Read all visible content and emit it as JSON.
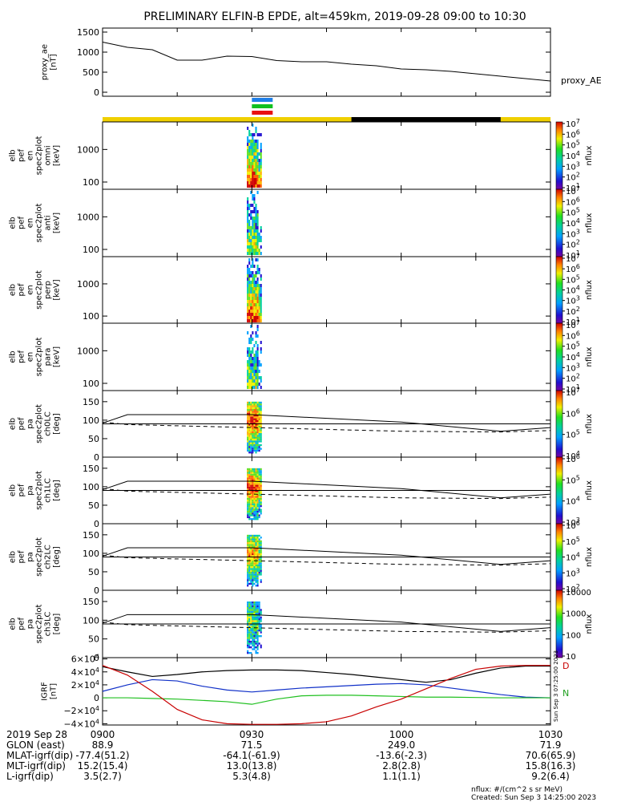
{
  "title": "PRELIMINARY ELFIN-B EPDE, alt=459km, 2019-09-28 09:00 to 10:30",
  "colors": {
    "orbit_yellow": "#f0d000",
    "orbit_black": "#000000",
    "bar_blue": "#1f7fe8",
    "bar_green": "#10c020",
    "bar_red": "#e81010",
    "grf_black": "#000000",
    "grf_blue": "#1030c8",
    "grf_green": "#20c020",
    "grf_red": "#c80000"
  },
  "panels": [
    {
      "id": "ae",
      "ylabel": [
        "proxy_ae",
        "[nT]"
      ],
      "side_label": "proxy_AE"
    },
    {
      "id": "en1",
      "ylabel": [
        "elb",
        "pef",
        "en",
        "spec2plot",
        "omni",
        "[keV]"
      ],
      "cbar_label": "nflux"
    },
    {
      "id": "en2",
      "ylabel": [
        "elb",
        "pef",
        "en",
        "spec2plot",
        "anti",
        "[keV]"
      ],
      "cbar_label": "nflux"
    },
    {
      "id": "en3",
      "ylabel": [
        "elb",
        "pef",
        "en",
        "spec2plot",
        "perp",
        "[keV]"
      ],
      "cbar_label": "nflux"
    },
    {
      "id": "en4",
      "ylabel": [
        "elb",
        "pef",
        "en",
        "spec2plot",
        "para",
        "[keV]"
      ],
      "cbar_label": "nflux"
    },
    {
      "id": "pa0",
      "ylabel": [
        "elb",
        "pef",
        "pa",
        "spec2plot",
        "ch0LC",
        "[deg]"
      ],
      "cbar_label": "nflux"
    },
    {
      "id": "pa1",
      "ylabel": [
        "elb",
        "pef",
        "pa",
        "spec2plot",
        "ch1LC",
        "[deg]"
      ],
      "cbar_label": "nflux"
    },
    {
      "id": "pa2",
      "ylabel": [
        "elb",
        "pef",
        "pa",
        "spec2plot",
        "ch2LC",
        "[deg]"
      ],
      "cbar_label": "nflux"
    },
    {
      "id": "pa3",
      "ylabel": [
        "elb",
        "pef",
        "pa",
        "spec2plot",
        "ch3LC",
        "[deg]"
      ],
      "cbar_label": "nflux"
    },
    {
      "id": "grf",
      "ylabel": [
        "IGRF",
        "[nT]"
      ]
    }
  ],
  "footer": {
    "rows": [
      {
        "label": "2019 Sep 28",
        "values": [
          "0900",
          "0930",
          "1000",
          "1030"
        ]
      },
      {
        "label": "GLON (east)",
        "values": [
          "88.9",
          "71.5",
          "249.0",
          "71.9"
        ]
      },
      {
        "label": "MLAT-igrf(dip)",
        "values": [
          "-77.4(51.2)",
          "-64.1(-61.9)",
          "-13.6(-2.3)",
          "70.6(65.9)"
        ]
      },
      {
        "label": "MLT-igrf(dip)",
        "values": [
          "15.2(15.4)",
          "13.0(13.8)",
          "2.8(2.8)",
          "15.8(16.3)"
        ]
      },
      {
        "label": "L-igrf(dip)",
        "values": [
          "3.5(2.7)",
          "5.3(4.8)",
          "1.1(1.1)",
          "9.2(6.4)"
        ]
      }
    ],
    "units": "nflux: #/(cm^2 s sr MeV)",
    "created": "Created: Sun Sep  3 14:25:00 2023"
  },
  "grf_side": {
    "d_label": "D",
    "n_label": "N",
    "stamp": "Sun Sep  3 07:25:00 2023"
  },
  "chart_data": [
    {
      "type": "line",
      "panel": "ae",
      "x": [
        "09:00",
        "09:05",
        "09:10",
        "09:15",
        "09:20",
        "09:25",
        "09:30",
        "09:35",
        "09:40",
        "09:45",
        "09:50",
        "09:55",
        "10:00",
        "10:05",
        "10:10",
        "10:15",
        "10:20",
        "10:25",
        "10:30"
      ],
      "series": [
        {
          "values": [
            1250,
            1120,
            1060,
            800,
            800,
            900,
            890,
            790,
            760,
            760,
            700,
            660,
            580,
            560,
            520,
            460,
            400,
            340,
            280
          ]
        }
      ],
      "ylim": [
        -100,
        1600
      ],
      "yticks": [
        0,
        500,
        1000,
        1500
      ],
      "ytick_labels": [
        "0",
        "500",
        "1000",
        "1500"
      ]
    },
    {
      "type": "bar",
      "panel": "orbit-bar",
      "segments": [
        {
          "start": "09:00",
          "end": "09:50",
          "color": "yellow"
        },
        {
          "start": "09:50",
          "end": "10:20",
          "color": "black"
        },
        {
          "start": "10:20",
          "end": "10:30",
          "color": "yellow"
        }
      ],
      "indicator_bars": [
        {
          "color": "blue"
        },
        {
          "color": "green"
        },
        {
          "color": "red"
        }
      ],
      "indicator_time": "09:30"
    },
    {
      "type": "heatmap",
      "panel": "en1",
      "yscale": "log",
      "ylim": [
        60,
        7000
      ],
      "yticks": [
        100,
        1000
      ],
      "ytick_labels": [
        "100",
        "1000"
      ],
      "cbar": {
        "scale": "log",
        "range": [
          10,
          10000000
        ],
        "labels": [
          "10^1",
          "10^2",
          "10^3",
          "10^4",
          "10^5",
          "10^6",
          "10^7"
        ]
      }
    },
    {
      "type": "heatmap",
      "panel": "en2",
      "yscale": "log",
      "ylim": [
        60,
        7000
      ],
      "yticks": [
        100,
        1000
      ],
      "ytick_labels": [
        "100",
        "1000"
      ],
      "cbar": {
        "scale": "log",
        "range": [
          10,
          10000000
        ],
        "labels": [
          "10^1",
          "10^2",
          "10^3",
          "10^4",
          "10^5",
          "10^6",
          "10^7"
        ]
      }
    },
    {
      "type": "heatmap",
      "panel": "en3",
      "yscale": "log",
      "ylim": [
        60,
        7000
      ],
      "yticks": [
        100,
        1000
      ],
      "ytick_labels": [
        "100",
        "1000"
      ],
      "cbar": {
        "scale": "log",
        "range": [
          10,
          10000000
        ],
        "labels": [
          "10^1",
          "10^2",
          "10^3",
          "10^4",
          "10^5",
          "10^6",
          "10^7"
        ]
      }
    },
    {
      "type": "heatmap",
      "panel": "en4",
      "yscale": "log",
      "ylim": [
        60,
        7000
      ],
      "yticks": [
        100,
        1000
      ],
      "ytick_labels": [
        "100",
        "1000"
      ],
      "cbar": {
        "scale": "log",
        "range": [
          10,
          10000000
        ],
        "labels": [
          "10^1",
          "10^2",
          "10^3",
          "10^4",
          "10^5",
          "10^6",
          "10^7"
        ]
      }
    },
    {
      "type": "heatmap",
      "panel": "pa0",
      "ylim": [
        0,
        180
      ],
      "yticks": [
        0,
        50,
        100,
        150
      ],
      "ytick_labels": [
        "0",
        "50",
        "100",
        "150"
      ],
      "cbar": {
        "scale": "log",
        "range": [
          5000,
          10000000
        ],
        "labels": [
          "10^4",
          "10^5",
          "10^6",
          "10^7"
        ]
      },
      "overlay": {
        "x": [
          "09:00",
          "09:05",
          "09:30",
          "10:00",
          "10:20",
          "10:30"
        ],
        "loss_cone": [
          92,
          115,
          115,
          95,
          70,
          80
        ],
        "anti_loss_cone": [
          95,
          88,
          80,
          70,
          68,
          72
        ]
      }
    },
    {
      "type": "heatmap",
      "panel": "pa1",
      "ylim": [
        0,
        180
      ],
      "yticks": [
        0,
        50,
        100,
        150
      ],
      "ytick_labels": [
        "0",
        "50",
        "100",
        "150"
      ],
      "cbar": {
        "scale": "log",
        "range": [
          1000,
          3000000
        ],
        "labels": [
          "10^3",
          "10^4",
          "10^5",
          "10^6"
        ]
      },
      "overlay": {
        "x": [
          "09:00",
          "09:05",
          "09:30",
          "10:00",
          "10:20",
          "10:30"
        ],
        "loss_cone": [
          92,
          115,
          115,
          95,
          70,
          80
        ],
        "anti_loss_cone": [
          95,
          88,
          80,
          70,
          68,
          72
        ]
      }
    },
    {
      "type": "heatmap",
      "panel": "pa2",
      "ylim": [
        0,
        180
      ],
      "yticks": [
        0,
        50,
        100,
        150
      ],
      "ytick_labels": [
        "0",
        "50",
        "100",
        "150"
      ],
      "cbar": {
        "scale": "log",
        "range": [
          100,
          3000000
        ],
        "labels": [
          "10^2",
          "10^3",
          "10^4",
          "10^5",
          "10^6"
        ]
      },
      "overlay": {
        "x": [
          "09:00",
          "09:05",
          "09:30",
          "10:00",
          "10:20",
          "10:30"
        ],
        "loss_cone": [
          92,
          115,
          115,
          95,
          70,
          80
        ],
        "anti_loss_cone": [
          95,
          88,
          80,
          70,
          68,
          72
        ]
      }
    },
    {
      "type": "heatmap",
      "panel": "pa3",
      "ylim": [
        0,
        180
      ],
      "yticks": [
        0,
        50,
        100,
        150
      ],
      "ytick_labels": [
        "0",
        "50",
        "100",
        "150"
      ],
      "cbar": {
        "scale": "log",
        "range": [
          10,
          10000
        ],
        "labels": [
          "10",
          "100",
          "1000",
          "10000"
        ]
      },
      "overlay": {
        "x": [
          "09:00",
          "09:05",
          "09:30",
          "10:00",
          "10:20",
          "10:30"
        ],
        "loss_cone": [
          92,
          115,
          115,
          95,
          70,
          80
        ],
        "anti_loss_cone": [
          95,
          88,
          80,
          70,
          68,
          72
        ]
      }
    },
    {
      "type": "line",
      "panel": "grf",
      "x": [
        "09:00",
        "09:05",
        "09:10",
        "09:15",
        "09:20",
        "09:25",
        "09:30",
        "09:35",
        "09:40",
        "09:45",
        "09:50",
        "09:55",
        "10:00",
        "10:05",
        "10:10",
        "10:15",
        "10:20",
        "10:25",
        "10:30"
      ],
      "series": [
        {
          "color": "black",
          "values": [
            48000,
            40000,
            33000,
            36000,
            40000,
            42000,
            43000,
            43000,
            42000,
            39000,
            36000,
            32000,
            28000,
            24000,
            28000,
            38000,
            46000,
            49000,
            49000
          ]
        },
        {
          "color": "blue",
          "values": [
            10000,
            20000,
            28000,
            26000,
            18000,
            12000,
            9000,
            12000,
            15000,
            17000,
            19000,
            21000,
            22000,
            20000,
            15000,
            10000,
            5000,
            1000,
            0
          ]
        },
        {
          "color": "green",
          "values": [
            0,
            0,
            -1000,
            -2000,
            -4000,
            -6000,
            -10000,
            -2000,
            3000,
            4000,
            4000,
            3000,
            2000,
            1000,
            1000,
            500,
            0,
            0,
            0
          ]
        },
        {
          "color": "red",
          "values": [
            50000,
            35000,
            10000,
            -18000,
            -34000,
            -40000,
            -41000,
            -41000,
            -40000,
            -37000,
            -28000,
            -14000,
            -2000,
            14000,
            30000,
            44000,
            49000,
            50000,
            50000
          ]
        }
      ],
      "ylim": [
        -42000,
        62000
      ],
      "yticks": [
        -40000,
        -20000,
        0,
        20000,
        40000,
        60000
      ],
      "ytick_labels": [
        "−4×10^4",
        "−2×10^4",
        "0",
        "2×10^4",
        "4×10^4",
        "6×10^4"
      ]
    }
  ]
}
